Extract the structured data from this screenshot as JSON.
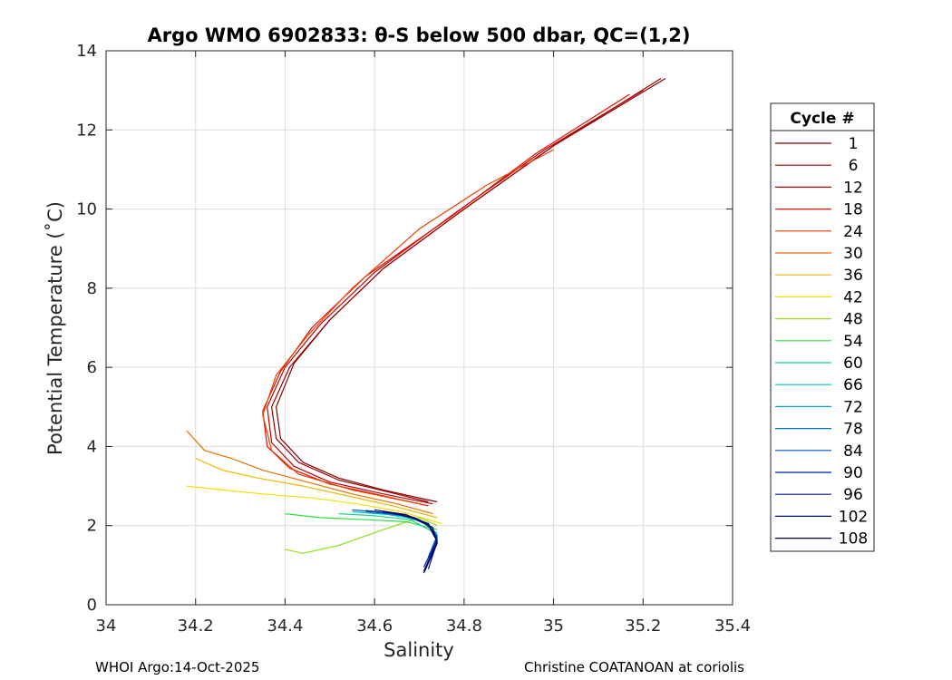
{
  "chart_data": {
    "type": "line",
    "title": "Argo WMO 6902833: θ-S below 500 dbar,  QC=(1,2)",
    "xlabel": "Salinity",
    "ylabel": "Potential Temperature (˚C)",
    "xlim": [
      34,
      35.4
    ],
    "ylim": [
      0,
      14
    ],
    "xticks": [
      34,
      34.2,
      34.4,
      34.6,
      34.8,
      35,
      35.2,
      35.4
    ],
    "xtick_labels": [
      "34",
      "34.2",
      "34.4",
      "34.6",
      "34.8",
      "35",
      "35.2",
      "35.4"
    ],
    "yticks": [
      0,
      2,
      4,
      6,
      8,
      10,
      12,
      14
    ],
    "ytick_labels": [
      "0",
      "2",
      "4",
      "6",
      "8",
      "10",
      "12",
      "14"
    ],
    "grid": true,
    "legend": {
      "title": "Cycle #",
      "placement": "right",
      "entries": [
        "1",
        "6",
        "12",
        "18",
        "24",
        "30",
        "36",
        "42",
        "48",
        "54",
        "60",
        "66",
        "72",
        "78",
        "84",
        "90",
        "96",
        "102",
        "108"
      ],
      "colors": [
        "#800000",
        "#9a0000",
        "#c00000",
        "#e01000",
        "#ee4000",
        "#e87000",
        "#e8b800",
        "#f0e000",
        "#90e020",
        "#30e040",
        "#10d880",
        "#00c0c0",
        "#00a0d8",
        "#0070c0",
        "#0050c0",
        "#0020a0",
        "#001890",
        "#001070",
        "#000050"
      ]
    },
    "series": [
      {
        "name": "1",
        "color": "#800000",
        "x": [
          35.25,
          35.0,
          34.8,
          34.62,
          34.5,
          34.42,
          34.38,
          34.39,
          34.44,
          34.52,
          34.62,
          34.7,
          34.74
        ],
        "y": [
          13.3,
          11.6,
          10.0,
          8.5,
          7.2,
          6.1,
          5.0,
          4.2,
          3.6,
          3.2,
          2.9,
          2.7,
          2.6
        ]
      },
      {
        "name": "6",
        "color": "#9a0000",
        "x": [
          35.24,
          35.0,
          34.8,
          34.62,
          34.5,
          34.41,
          34.37,
          34.38,
          34.43,
          34.52,
          34.63,
          34.72
        ],
        "y": [
          13.3,
          11.6,
          10.0,
          8.5,
          7.2,
          6.0,
          5.0,
          4.2,
          3.6,
          3.15,
          2.85,
          2.6
        ]
      },
      {
        "name": "12",
        "color": "#c00000",
        "x": [
          35.2,
          34.98,
          34.78,
          34.6,
          34.48,
          34.4,
          34.36,
          34.37,
          34.42,
          34.5,
          34.62,
          34.73
        ],
        "y": [
          13.0,
          11.5,
          9.9,
          8.4,
          7.1,
          6.0,
          5.0,
          4.1,
          3.5,
          3.1,
          2.8,
          2.55
        ]
      },
      {
        "name": "18",
        "color": "#e01000",
        "x": [
          35.17,
          34.96,
          34.77,
          34.58,
          34.46,
          34.39,
          34.35,
          34.36,
          34.41,
          34.5,
          34.62,
          34.72
        ],
        "y": [
          12.9,
          11.4,
          9.8,
          8.3,
          7.0,
          5.9,
          4.9,
          4.0,
          3.45,
          3.05,
          2.75,
          2.5
        ]
      },
      {
        "name": "24",
        "color": "#ee4000",
        "x": [
          35.0,
          34.85,
          34.7,
          34.55,
          34.45,
          34.38,
          34.35,
          34.37,
          34.43,
          34.55,
          34.7
        ],
        "y": [
          11.5,
          10.6,
          9.5,
          8.0,
          6.8,
          5.8,
          4.8,
          3.9,
          3.3,
          2.9,
          2.55
        ]
      },
      {
        "name": "30",
        "color": "#e87000",
        "x": [
          34.18,
          34.22,
          34.28,
          34.35,
          34.45,
          34.55,
          34.65,
          34.73
        ],
        "y": [
          4.4,
          3.9,
          3.7,
          3.4,
          3.1,
          2.8,
          2.55,
          2.3
        ]
      },
      {
        "name": "36",
        "color": "#e8b800",
        "x": [
          34.2,
          34.26,
          34.34,
          34.44,
          34.54,
          34.64,
          34.74
        ],
        "y": [
          3.7,
          3.4,
          3.2,
          3.0,
          2.75,
          2.5,
          2.2
        ]
      },
      {
        "name": "42",
        "color": "#f0e000",
        "x": [
          34.18,
          34.26,
          34.35,
          34.46,
          34.56,
          34.66,
          34.75
        ],
        "y": [
          3.0,
          2.9,
          2.8,
          2.7,
          2.55,
          2.35,
          2.05
        ]
      },
      {
        "name": "48",
        "color": "#90e020",
        "x": [
          34.4,
          34.44,
          34.52,
          34.62,
          34.7,
          34.74
        ],
        "y": [
          1.4,
          1.3,
          1.5,
          1.9,
          2.2,
          2.0
        ]
      },
      {
        "name": "54",
        "color": "#30e040",
        "x": [
          34.4,
          34.48,
          34.58,
          34.67,
          34.74
        ],
        "y": [
          2.3,
          2.2,
          2.15,
          2.1,
          1.9
        ]
      },
      {
        "name": "60",
        "color": "#10d880",
        "x": [
          34.52,
          34.6,
          34.68,
          34.73
        ],
        "y": [
          2.3,
          2.25,
          2.15,
          1.85
        ]
      },
      {
        "name": "66",
        "color": "#00c0c0",
        "x": [
          34.55,
          34.63,
          34.7,
          34.74
        ],
        "y": [
          2.35,
          2.28,
          2.15,
          1.8
        ]
      },
      {
        "name": "72",
        "color": "#00a0d8",
        "x": [
          34.58,
          34.66,
          34.72,
          34.74
        ],
        "y": [
          2.35,
          2.25,
          2.05,
          1.7
        ]
      },
      {
        "name": "78",
        "color": "#0070c0",
        "x": [
          34.6,
          34.67,
          34.72,
          34.74,
          34.72
        ],
        "y": [
          2.35,
          2.25,
          2.05,
          1.7,
          1.1
        ]
      },
      {
        "name": "84",
        "color": "#0050c0",
        "x": [
          34.55,
          34.65,
          34.71,
          34.74,
          34.72
        ],
        "y": [
          2.4,
          2.3,
          2.1,
          1.75,
          1.2
        ]
      },
      {
        "name": "90",
        "color": "#0020a0",
        "x": [
          34.58,
          34.66,
          34.72,
          34.74,
          34.71
        ],
        "y": [
          2.38,
          2.28,
          2.05,
          1.65,
          0.95
        ]
      },
      {
        "name": "96",
        "color": "#001890",
        "x": [
          34.62,
          34.68,
          34.72,
          34.74,
          34.72
        ],
        "y": [
          2.35,
          2.22,
          2.0,
          1.6,
          0.9
        ]
      },
      {
        "name": "102",
        "color": "#001070",
        "x": [
          34.6,
          34.67,
          34.72,
          34.74,
          34.71
        ],
        "y": [
          2.4,
          2.28,
          2.05,
          1.6,
          0.85
        ]
      },
      {
        "name": "108",
        "color": "#000050",
        "x": [
          34.62,
          34.69,
          34.73,
          34.74,
          34.71
        ],
        "y": [
          2.35,
          2.2,
          1.95,
          1.55,
          0.8
        ]
      }
    ]
  },
  "footer": {
    "left": "WHOI Argo:14-Oct-2025",
    "right": "Christine COATANOAN at coriolis"
  }
}
